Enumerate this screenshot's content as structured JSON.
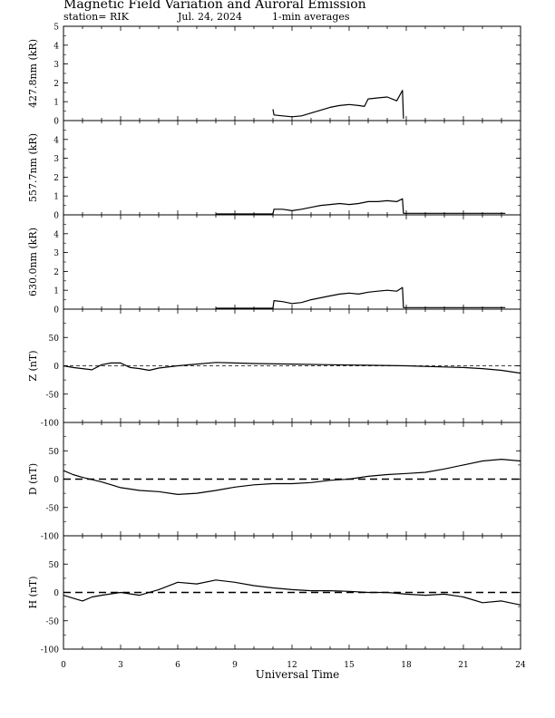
{
  "header": {
    "title": "Magnetic Field Variation and Auroral Emission",
    "station": "station= RIK",
    "date": "Jul. 24, 2024",
    "averaging": "1-min averages"
  },
  "chart_data": [
    {
      "type": "line",
      "ylabel": "427.8nm (kR)",
      "ylim": [
        0,
        5
      ],
      "yticks": [
        0,
        1,
        2,
        3,
        4,
        5
      ],
      "series": [
        {
          "x": [
            11.0,
            11.05,
            11.5,
            12.0,
            12.5,
            13.0,
            13.5,
            14.0,
            14.5,
            15.0,
            15.5,
            15.8,
            16.0,
            16.5,
            17.0,
            17.5,
            17.8,
            17.85
          ],
          "y": [
            0.6,
            0.3,
            0.25,
            0.2,
            0.25,
            0.4,
            0.55,
            0.7,
            0.8,
            0.85,
            0.8,
            0.75,
            1.15,
            1.2,
            1.25,
            1.05,
            1.6,
            0.1
          ]
        }
      ]
    },
    {
      "type": "line",
      "ylabel": "557.7nm (kR)",
      "ylim": [
        0,
        5
      ],
      "yticks": [
        0,
        1,
        2,
        3,
        4
      ],
      "series": [
        {
          "x": [
            8.0,
            11.0,
            11.05,
            11.5,
            12.0,
            12.5,
            13.0,
            13.5,
            14.0,
            14.5,
            15.0,
            15.5,
            16.0,
            16.5,
            17.0,
            17.5,
            17.8,
            17.85,
            23.2
          ],
          "y": [
            0.05,
            0.05,
            0.3,
            0.3,
            0.22,
            0.3,
            0.4,
            0.5,
            0.55,
            0.6,
            0.55,
            0.6,
            0.7,
            0.7,
            0.75,
            0.7,
            0.85,
            0.08,
            0.08
          ]
        }
      ]
    },
    {
      "type": "line",
      "ylabel": "630.0nm (kR)",
      "ylim": [
        0,
        5
      ],
      "yticks": [
        0,
        1,
        2,
        3,
        4
      ],
      "series": [
        {
          "x": [
            8.0,
            11.0,
            11.05,
            11.5,
            12.0,
            12.5,
            13.0,
            13.5,
            14.0,
            14.5,
            15.0,
            15.5,
            16.0,
            16.5,
            17.0,
            17.5,
            17.8,
            17.85,
            23.2
          ],
          "y": [
            0.05,
            0.05,
            0.45,
            0.4,
            0.3,
            0.35,
            0.5,
            0.6,
            0.7,
            0.8,
            0.85,
            0.8,
            0.9,
            0.95,
            1.0,
            0.95,
            1.15,
            0.08,
            0.08
          ]
        }
      ]
    },
    {
      "type": "line",
      "ylabel": "Z (nT)",
      "ylim": [
        -100,
        100
      ],
      "yticks": [
        -100,
        -50,
        0,
        50
      ],
      "baseline": 0,
      "series": [
        {
          "x": [
            0,
            0.5,
            1.0,
            1.5,
            2.0,
            2.5,
            3.0,
            3.5,
            4.0,
            4.5,
            5.0,
            6.0,
            7.0,
            8.0,
            9.0,
            10.0,
            12.0,
            14.0,
            16.0,
            18.0,
            20.0,
            21.0,
            22.0,
            23.0,
            24.0
          ],
          "y": [
            0,
            -3,
            -5,
            -7,
            2,
            5,
            5,
            -3,
            -5,
            -8,
            -4,
            0,
            3,
            6,
            5,
            4,
            3,
            2,
            1,
            0,
            -2,
            -3,
            -5,
            -8,
            -13
          ]
        }
      ]
    },
    {
      "type": "line",
      "ylabel": "D (nT)",
      "ylim": [
        -100,
        100
      ],
      "yticks": [
        -100,
        -50,
        0,
        50
      ],
      "baseline": 0,
      "series": [
        {
          "x": [
            0,
            0.5,
            1.0,
            2.0,
            3.0,
            4.0,
            5.0,
            6.0,
            7.0,
            8.0,
            9.0,
            10.0,
            11.0,
            12.0,
            13.0,
            14.0,
            15.0,
            16.0,
            17.0,
            18.0,
            19.0,
            20.0,
            21.0,
            22.0,
            23.0,
            24.0
          ],
          "y": [
            15,
            8,
            3,
            -5,
            -15,
            -20,
            -22,
            -27,
            -25,
            -20,
            -14,
            -10,
            -8,
            -8,
            -6,
            -2,
            0,
            5,
            8,
            10,
            12,
            18,
            25,
            32,
            35,
            32
          ]
        }
      ]
    },
    {
      "type": "line",
      "ylabel": "H (nT)",
      "ylim": [
        -100,
        100
      ],
      "yticks": [
        -100,
        -50,
        0,
        50
      ],
      "baseline": 0,
      "series": [
        {
          "x": [
            0,
            0.5,
            1.0,
            1.5,
            2.0,
            3.0,
            4.0,
            5.0,
            6.0,
            7.0,
            8.0,
            9.0,
            10.0,
            11.0,
            12.0,
            13.0,
            14.0,
            15.0,
            16.0,
            17.0,
            18.0,
            19.0,
            20.0,
            21.0,
            22.0,
            23.0,
            24.0
          ],
          "y": [
            -5,
            -10,
            -15,
            -8,
            -5,
            0,
            -5,
            5,
            18,
            15,
            22,
            18,
            12,
            8,
            5,
            3,
            3,
            2,
            0,
            0,
            -3,
            -5,
            -3,
            -8,
            -18,
            -15,
            -22
          ]
        }
      ]
    }
  ],
  "xaxis": {
    "label": "Universal Time",
    "ticks": [
      0,
      3,
      6,
      9,
      12,
      15,
      18,
      21,
      24
    ],
    "xlim": [
      0,
      24
    ]
  }
}
